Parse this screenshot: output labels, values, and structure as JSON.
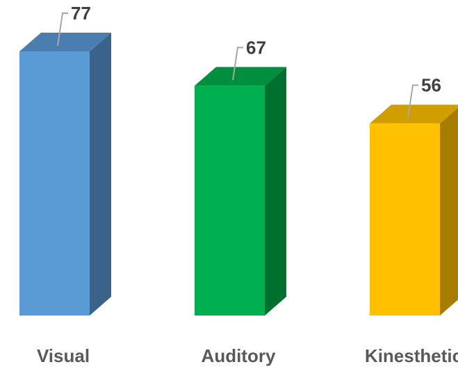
{
  "chart_data": {
    "type": "bar",
    "categories": [
      "Visual",
      "Auditory",
      "Kinesthetic"
    ],
    "values": [
      77,
      67,
      56
    ],
    "title": "",
    "xlabel": "",
    "ylabel": "",
    "ylim": [
      0,
      77
    ],
    "grid": false,
    "legend": "none",
    "style": "3d-column",
    "colors": [
      {
        "front": "#5b9bd5",
        "top": "#4a7eb0",
        "side": "#3b6389"
      },
      {
        "front": "#00b050",
        "top": "#008f3f",
        "side": "#00702f"
      },
      {
        "front": "#ffc000",
        "top": "#d19e00",
        "side": "#a67d00"
      }
    ],
    "leader_line_color": "#a6a6a6"
  }
}
